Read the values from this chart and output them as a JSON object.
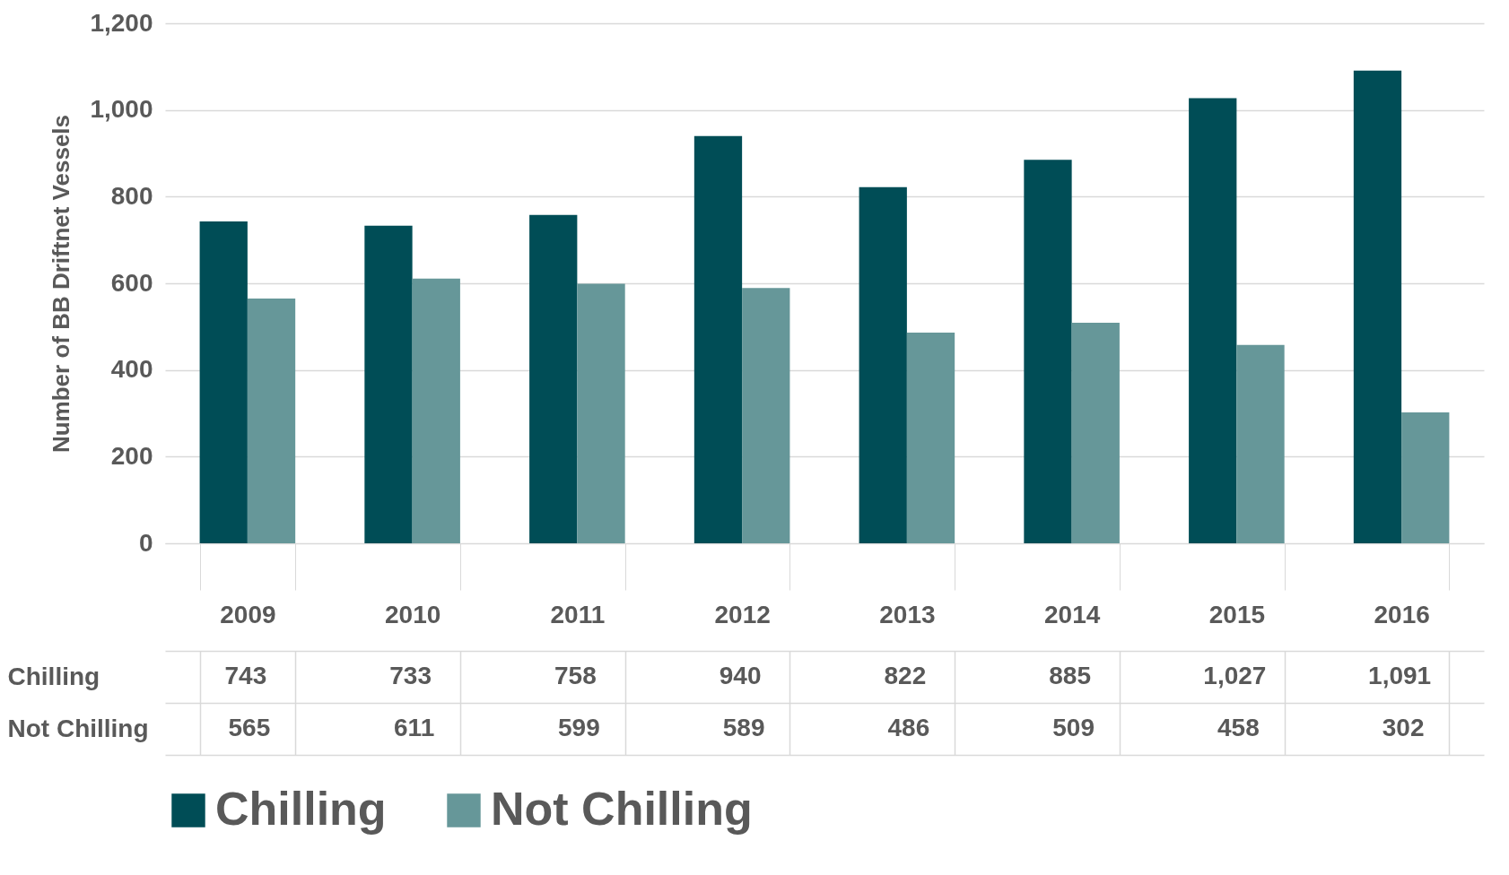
{
  "chart_data": {
    "type": "bar",
    "ylabel": "Number of BB Driftnet Vessels",
    "categories": [
      "2009",
      "2010",
      "2011",
      "2012",
      "2013",
      "2014",
      "2015",
      "2016"
    ],
    "series": [
      {
        "name": "Chilling",
        "color": "#004d56",
        "values": [
          743,
          733,
          758,
          940,
          822,
          885,
          1027,
          1091
        ],
        "value_labels": [
          "743",
          "733",
          "758",
          "940",
          "822",
          "885",
          "1,027",
          "1,091"
        ]
      },
      {
        "name": "Not Chilling",
        "color": "#669799",
        "values": [
          565,
          611,
          599,
          589,
          486,
          509,
          458,
          302
        ],
        "value_labels": [
          "565",
          "611",
          "599",
          "589",
          "486",
          "509",
          "458",
          "302"
        ]
      }
    ],
    "ylim": [
      0,
      1200
    ],
    "yticks": [
      0,
      200,
      400,
      600,
      800,
      {
        "value": 1000,
        "label": "1,000"
      },
      {
        "value": 1200,
        "label": "1,200"
      }
    ],
    "grid": "y",
    "legend": "bottom"
  }
}
